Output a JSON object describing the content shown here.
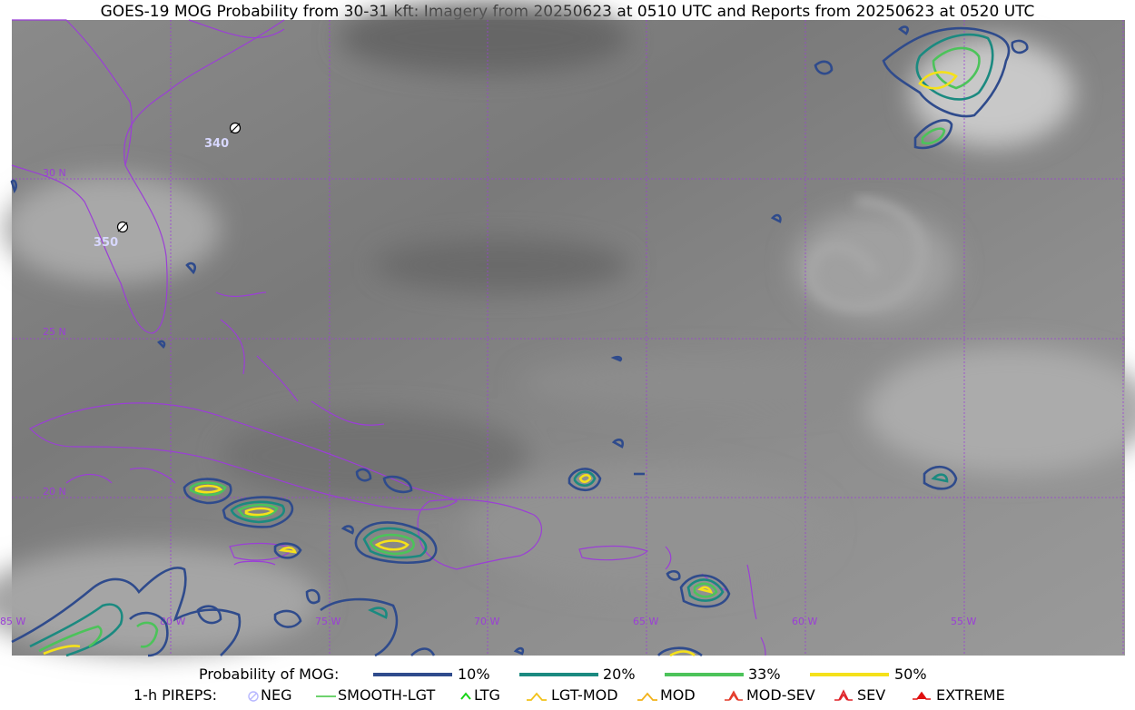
{
  "title": "GOES-19 MOG Probability from 30-31 kft: Imagery from 20250623 at 0510 UTC and Reports from 20250623 at 0520 UTC",
  "colors": {
    "p10": "#2f4b8c",
    "p20": "#1b8a80",
    "p33": "#4cc35a",
    "p50": "#f5e11a",
    "geo": "#9b3fd6",
    "neg": "#b8b8ff",
    "smooth": "#3ec43e",
    "ltg": "#17d417",
    "lgtmod": "#f2c21a",
    "mod": "#f2b21a",
    "modsev": "#e43b2a",
    "sev": "#e0252a",
    "extreme": "#e01010"
  },
  "latitude_labels": [
    "30 N",
    "25 N",
    "20 N"
  ],
  "longitude_labels": [
    "85 W",
    "80 W",
    "75 W",
    "70 W",
    "65 W",
    "60 W",
    "55 W"
  ],
  "pireps": [
    {
      "flight_level": "340",
      "type": "NEG"
    },
    {
      "flight_level": "350",
      "type": "NEG"
    }
  ],
  "legend": {
    "probability_label": "Probability of MOG:",
    "probability_levels": [
      "10%",
      "20%",
      "33%",
      "50%"
    ],
    "pirep_label": "1-h PIREPS:",
    "pirep_types": [
      "NEG",
      "SMOOTH-LGT",
      "LTG",
      "LGT-MOD",
      "MOD",
      "MOD-SEV",
      "SEV",
      "EXTREME"
    ]
  }
}
